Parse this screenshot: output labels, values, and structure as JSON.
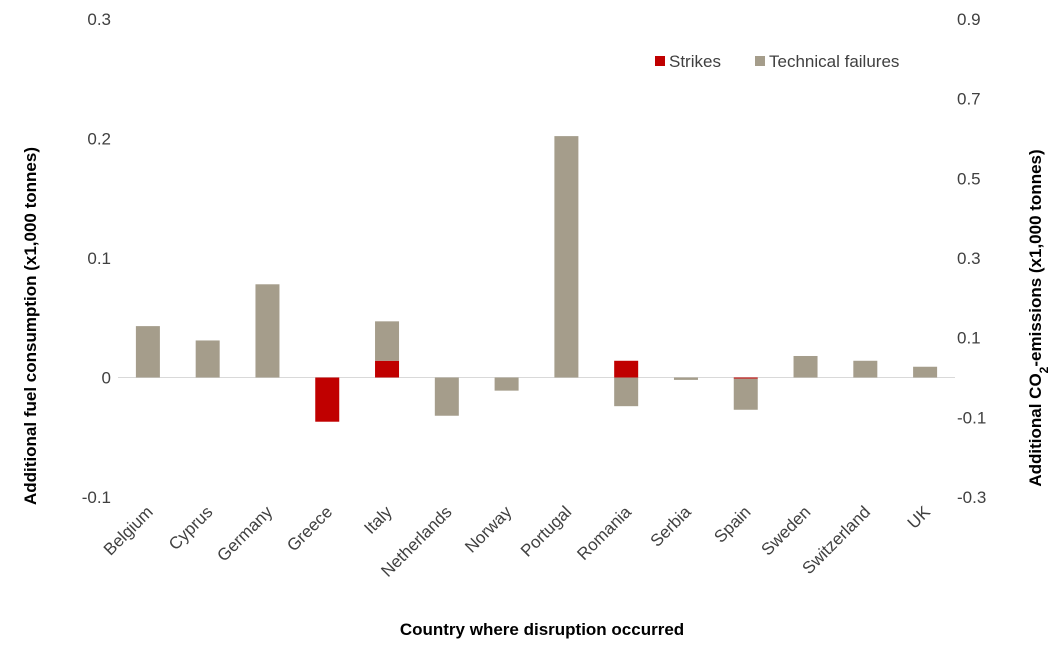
{
  "chart_data": {
    "type": "bar",
    "stacked": true,
    "xlabel": "Country where disruption occurred",
    "ylabel": "Additional fuel consumption (x1,000 tonnes)",
    "ylabel_right": "Additional CO2-emissions (x1,000 tonnes)",
    "ylabel_right_parts": {
      "pre": "Additional CO",
      "sub": "2",
      "post": "-emissions (x1,000 tonnes)"
    },
    "ylim": [
      -0.1,
      0.3
    ],
    "yticks": [
      "-0.1",
      "0",
      "0.1",
      "0.2",
      "0.3"
    ],
    "ylim_right": [
      -0.3,
      0.9
    ],
    "yticks_right": [
      "-0.3",
      "-0.1",
      "0.1",
      "0.3",
      "0.5",
      "0.7",
      "0.9"
    ],
    "yticks_right_values": [
      -0.3,
      -0.1,
      0.1,
      0.3,
      0.5,
      0.7,
      0.9
    ],
    "grid": false,
    "legend_position": "top-right",
    "categories": [
      "Belgium",
      "Cyprus",
      "Germany",
      "Greece",
      "Italy",
      "Netherlands",
      "Norway",
      "Portugal",
      "Romania",
      "Serbia",
      "Spain",
      "Sweden",
      "Switzerland",
      "UK"
    ],
    "series": [
      {
        "name": "Strikes",
        "color": "#c00000",
        "values": [
          0,
          0,
          0,
          -0.037,
          0.014,
          0,
          0,
          0,
          0.014,
          0,
          -0.001,
          0,
          0,
          0
        ]
      },
      {
        "name": "Technical failures",
        "color": "#a59d8b",
        "values": [
          0.043,
          0.031,
          0.078,
          0,
          0.033,
          -0.032,
          -0.011,
          0.202,
          -0.024,
          -0.002,
          -0.026,
          0.018,
          0.014,
          0.009
        ]
      }
    ]
  }
}
